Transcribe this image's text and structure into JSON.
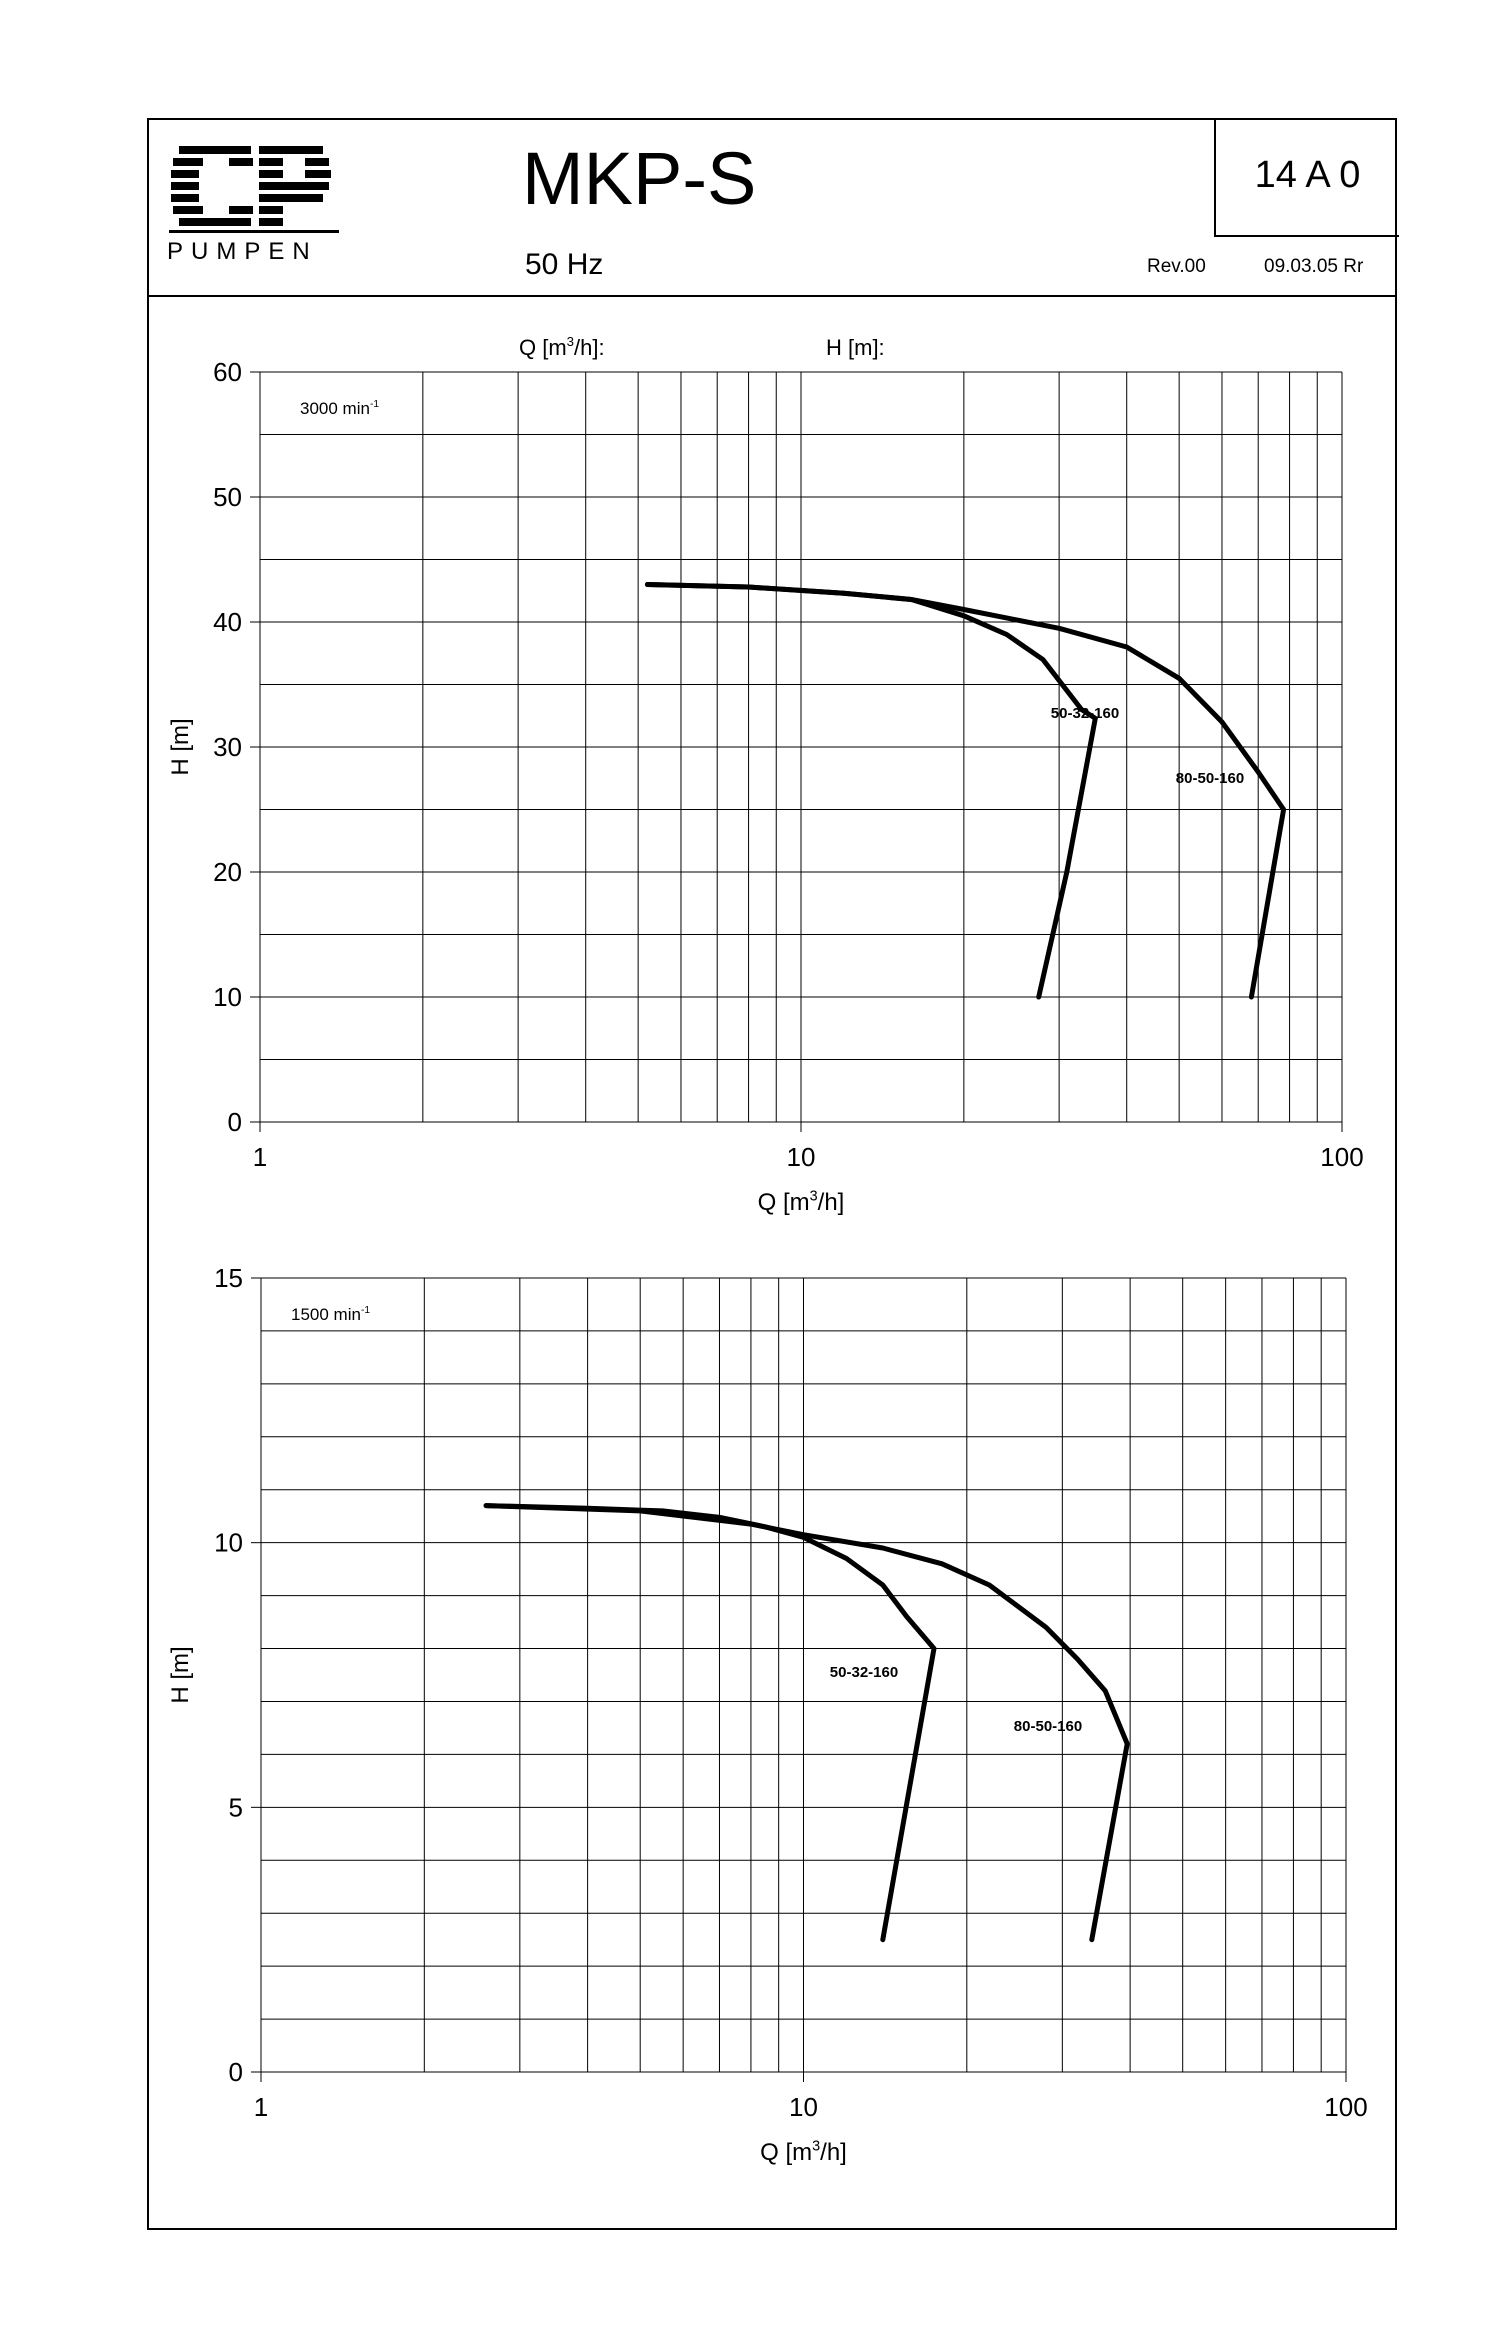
{
  "header": {
    "logo_text": "CP",
    "logo_subtext": "PUMPEN",
    "title": "MKP-S",
    "frequency": "50 Hz",
    "code": "14 A 0",
    "revision": "Rev.00",
    "date": "09.03.05 Rr"
  },
  "chart_data": [
    {
      "type": "line",
      "speed_label": "3000 min",
      "speed_exp": "-1",
      "top_label_q": "Q [m",
      "top_label_q_exp": "3",
      "top_label_q_end": "/h]:",
      "top_label_h": "H [m]:",
      "xlabel": "Q [m",
      "xlabel_exp": "3",
      "xlabel_end": "/h]",
      "ylabel": "H [m]",
      "xscale": "log",
      "xlim": [
        1,
        100
      ],
      "ylim": [
        0,
        60
      ],
      "xticks": [
        "1",
        "10",
        "100"
      ],
      "yticks": [
        "0",
        "10",
        "20",
        "30",
        "40",
        "50",
        "60"
      ],
      "grid": true,
      "series": [
        {
          "name": "50-32-160",
          "x": [
            5.2,
            8,
            12,
            16,
            20,
            24,
            28,
            33,
            35,
            31,
            27.5
          ],
          "y": [
            43,
            42.8,
            42.3,
            41.8,
            40.5,
            39,
            37,
            33,
            32.3,
            20,
            10
          ]
        },
        {
          "name": "80-50-160",
          "x": [
            5.2,
            8,
            12,
            16,
            20,
            30,
            40,
            50,
            60,
            70,
            78,
            68
          ],
          "y": [
            43,
            42.8,
            42.3,
            41.8,
            41,
            39.5,
            38,
            35.5,
            32,
            28,
            25,
            10
          ]
        }
      ]
    },
    {
      "type": "line",
      "speed_label": "1500 min",
      "speed_exp": "-1",
      "xlabel": "Q [m",
      "xlabel_exp": "3",
      "xlabel_end": "/h]",
      "ylabel": "H [m]",
      "xscale": "log",
      "xlim": [
        1,
        100
      ],
      "ylim": [
        0,
        15
      ],
      "xticks": [
        "1",
        "10",
        "100"
      ],
      "yticks": [
        "0",
        "5",
        "10",
        "15"
      ],
      "grid": true,
      "series": [
        {
          "name": "50-32-160",
          "x": [
            2.6,
            4,
            5.5,
            7,
            8.5,
            10,
            12,
            14,
            15.5,
            17.4,
            14
          ],
          "y": [
            10.7,
            10.65,
            10.6,
            10.48,
            10.3,
            10.1,
            9.7,
            9.2,
            8.6,
            8,
            2.5
          ]
        },
        {
          "name": "80-50-160",
          "x": [
            2.6,
            5,
            8,
            10,
            14,
            18,
            22,
            28,
            32,
            36,
            39.5,
            34
          ],
          "y": [
            10.7,
            10.6,
            10.35,
            10.15,
            9.9,
            9.6,
            9.2,
            8.4,
            7.8,
            7.2,
            6.2,
            2.5
          ]
        }
      ]
    }
  ]
}
